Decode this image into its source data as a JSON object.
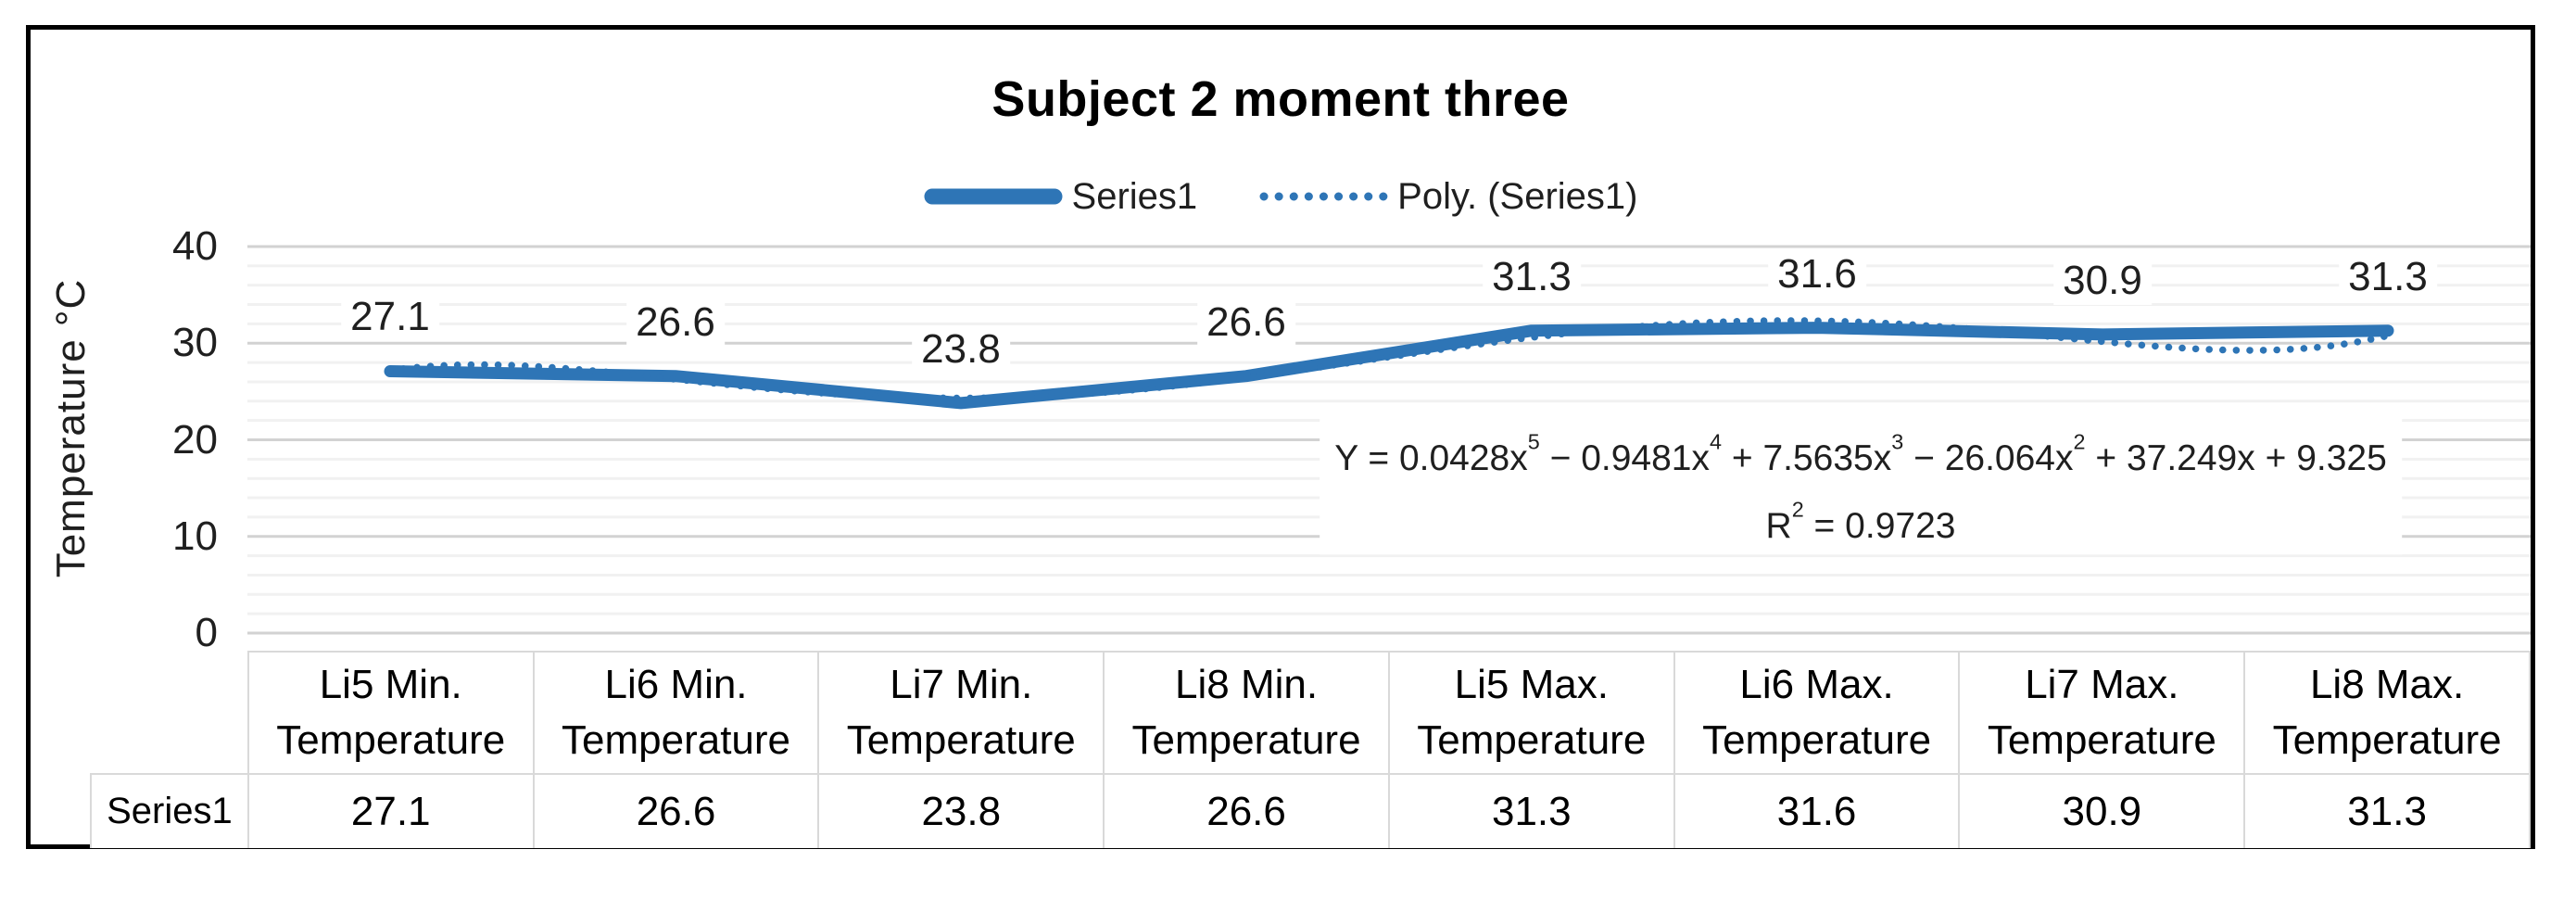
{
  "chart_data": {
    "type": "line",
    "title": "Subject 2 moment three",
    "ylabel": "Temperature °C",
    "xlabel": "",
    "categories": [
      "Li5 Min. Temperature",
      "Li6 Min. Temperature",
      "Li7 Min. Temperature",
      "Li8 Min. Temperature",
      "Li5 Max. Temperature",
      "Li6 Max. Temperature",
      "Li7 Max. Temperature",
      "Li8 Max. Temperature"
    ],
    "series": [
      {
        "name": "Series1",
        "values": [
          27.1,
          26.6,
          23.8,
          26.6,
          31.3,
          31.6,
          30.9,
          31.3
        ]
      }
    ],
    "data_labels": [
      "27.1",
      "26.6",
      "23.8",
      "26.6",
      "31.3",
      "31.6",
      "30.9",
      "31.3"
    ],
    "trendline": {
      "name": "Poly. (Series1)",
      "type": "polynomial",
      "order": 5,
      "coefficients": [
        0.0428,
        -0.9481,
        7.5635,
        -26.064,
        37.249,
        9.325
      ],
      "r_squared": 0.9723
    },
    "ylim": [
      0,
      40
    ],
    "y_major_ticks": [
      40,
      30,
      20,
      10,
      0
    ],
    "y_minor_step": 2,
    "grid": "horizontal-major-and-minor",
    "legend_position": "top"
  },
  "equation": {
    "parts": [
      [
        "Y = 0.0428x",
        "5"
      ],
      [
        " − 0.9481x",
        "4"
      ],
      [
        " + 7.5635x",
        "3"
      ],
      [
        " − 26.064x",
        "2"
      ],
      [
        " + 37.249x + 9.325",
        ""
      ]
    ],
    "r2_parts": [
      [
        "R",
        "2"
      ],
      [
        " = 0.9723",
        ""
      ]
    ]
  },
  "table": {
    "row_header": "Series1",
    "col_headers": [
      {
        "line1": "Li5 Min.",
        "line2": "Temperature"
      },
      {
        "line1": "Li6 Min.",
        "line2": "Temperature"
      },
      {
        "line1": "Li7 Min.",
        "line2": "Temperature"
      },
      {
        "line1": "Li8 Min.",
        "line2": "Temperature"
      },
      {
        "line1": "Li5 Max.",
        "line2": "Temperature"
      },
      {
        "line1": "Li6 Max.",
        "line2": "Temperature"
      },
      {
        "line1": "Li7 Max.",
        "line2": "Temperature"
      },
      {
        "line1": "Li8 Max.",
        "line2": "Temperature"
      }
    ],
    "values": [
      "27.1",
      "26.6",
      "23.8",
      "26.6",
      "31.3",
      "31.6",
      "30.9",
      "31.3"
    ]
  },
  "colors": {
    "accent": "#2E75B6",
    "grid_minor": "#F1F1F1",
    "grid_major": "#D2D2D2",
    "table_border": "#D9D9D9",
    "frame_border": "#000000",
    "text": "#1F1F1F"
  }
}
